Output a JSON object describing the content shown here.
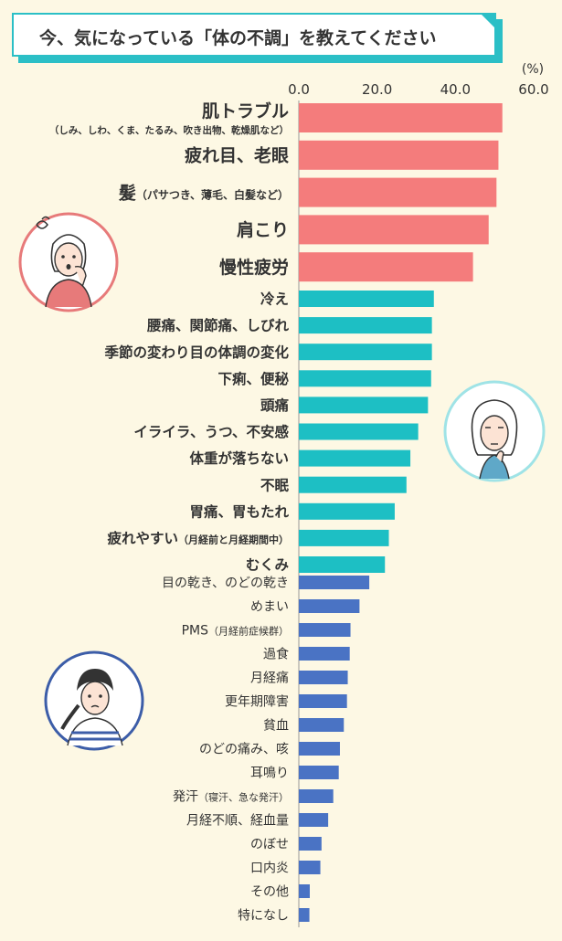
{
  "title": "今、気になっている「体の不調」を教えてください",
  "colors": {
    "background": "#FDF8E4",
    "accent": "#2BBFC6",
    "group1": "#F47C7C",
    "group2": "#1DBFC4",
    "group3": "#4A73C4"
  },
  "icons": [
    "troubled-woman-icon",
    "thinking-woman-icon",
    "worried-woman-icon"
  ],
  "chart_data": {
    "type": "bar",
    "orientation": "horizontal",
    "unit": "(%)",
    "xlim": [
      0,
      60
    ],
    "ticks": [
      "0.0",
      "20.0",
      "40.0",
      "60.0"
    ],
    "tick_values": [
      0,
      20,
      40,
      60
    ],
    "categories": [
      {
        "label": "肌トラブル",
        "sub": "（しみ、しわ、くま、たるみ、吹き出物、乾燥肌など）",
        "value": 52,
        "group": 1
      },
      {
        "label": "疲れ目、老眼",
        "sub": "",
        "value": 51,
        "group": 1
      },
      {
        "label": "髪",
        "sub": "（パサつき、薄毛、白髪など）",
        "value": 50.5,
        "group": 1
      },
      {
        "label": "肩こり",
        "sub": "",
        "value": 48.5,
        "group": 1
      },
      {
        "label": "慢性疲労",
        "sub": "",
        "value": 44.5,
        "group": 1
      },
      {
        "label": "冷え",
        "sub": "",
        "value": 34.5,
        "group": 2
      },
      {
        "label": "腰痛、関節痛、しびれ",
        "sub": "",
        "value": 34,
        "group": 2
      },
      {
        "label": "季節の変わり目の体調の変化",
        "sub": "",
        "value": 34,
        "group": 2
      },
      {
        "label": "下痢、便秘",
        "sub": "",
        "value": 33.8,
        "group": 2
      },
      {
        "label": "頭痛",
        "sub": "",
        "value": 33,
        "group": 2
      },
      {
        "label": "イライラ、うつ、不安感",
        "sub": "",
        "value": 30.5,
        "group": 2
      },
      {
        "label": "体重が落ちない",
        "sub": "",
        "value": 28.5,
        "group": 2
      },
      {
        "label": "不眠",
        "sub": "",
        "value": 27.5,
        "group": 2
      },
      {
        "label": "胃痛、胃もたれ",
        "sub": "",
        "value": 24.5,
        "group": 2
      },
      {
        "label": "疲れやすい",
        "sub": "（月経前と月経期間中）",
        "value": 23,
        "group": 2
      },
      {
        "label": "むくみ",
        "sub": "",
        "value": 22,
        "group": 2
      },
      {
        "label": "目の乾き、のどの乾き",
        "sub": "",
        "value": 18,
        "group": 3
      },
      {
        "label": "めまい",
        "sub": "",
        "value": 15.5,
        "group": 3
      },
      {
        "label": "PMS",
        "sub": "（月経前症候群）",
        "value": 13.2,
        "group": 3
      },
      {
        "label": "過食",
        "sub": "",
        "value": 13,
        "group": 3
      },
      {
        "label": "月経痛",
        "sub": "",
        "value": 12.5,
        "group": 3
      },
      {
        "label": "更年期障害",
        "sub": "",
        "value": 12.3,
        "group": 3
      },
      {
        "label": "貧血",
        "sub": "",
        "value": 11.5,
        "group": 3
      },
      {
        "label": "のどの痛み、咳",
        "sub": "",
        "value": 10.5,
        "group": 3
      },
      {
        "label": "耳鳴り",
        "sub": "",
        "value": 10.2,
        "group": 3
      },
      {
        "label": "発汗",
        "sub": "（寝汗、急な発汗）",
        "value": 8.8,
        "group": 3
      },
      {
        "label": "月経不順、経血量",
        "sub": "",
        "value": 7.5,
        "group": 3
      },
      {
        "label": "のぼせ",
        "sub": "",
        "value": 5.8,
        "group": 3
      },
      {
        "label": "口内炎",
        "sub": "",
        "value": 5.5,
        "group": 3
      },
      {
        "label": "その他",
        "sub": "",
        "value": 2.8,
        "group": 3
      },
      {
        "label": "特になし",
        "sub": "",
        "value": 2.7,
        "group": 3
      }
    ]
  }
}
